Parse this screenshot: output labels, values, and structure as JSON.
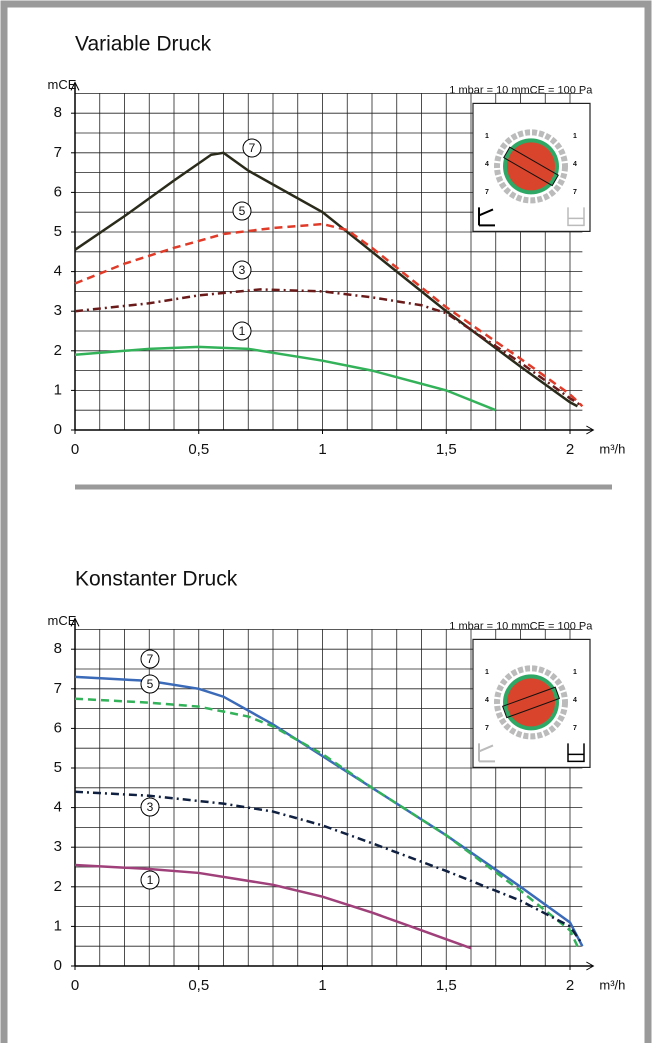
{
  "chart_data": [
    {
      "type": "line",
      "title": "Variable Druck",
      "y_label": "mCE",
      "x_label": "m³/h",
      "annotation": "1 mbar = 10 mmCE = 100 Pa",
      "xlim": [
        0,
        2.05
      ],
      "ylim": [
        0,
        8.5
      ],
      "xticks": [
        0,
        {
          "value": 0.5,
          "label": "0,5"
        },
        1,
        {
          "value": 1.5,
          "label": "1,5"
        },
        2
      ],
      "yticks": [
        0,
        1,
        2,
        3,
        4,
        5,
        6,
        7,
        8
      ],
      "grid": true,
      "xgrid_step": 0.1,
      "ygrid_step": 0.5,
      "dial_labels": [
        "1",
        "4",
        "7"
      ],
      "series": [
        {
          "name": "7",
          "color": "#2b2b1b",
          "dash": "solid",
          "x": [
            0,
            0.2,
            0.4,
            0.55,
            0.6,
            0.7,
            0.8,
            1.0,
            1.2,
            1.5,
            1.8,
            2.0,
            2.03
          ],
          "values": [
            4.55,
            5.4,
            6.3,
            6.95,
            7.0,
            6.55,
            6.2,
            5.5,
            4.5,
            3.0,
            1.6,
            0.7,
            0.6
          ]
        },
        {
          "name": "5",
          "color": "#e03a28",
          "dash": "dashed",
          "x": [
            0,
            0.2,
            0.4,
            0.6,
            0.8,
            1.0,
            1.1,
            1.2,
            1.5,
            1.8,
            2.0,
            2.05
          ],
          "values": [
            3.7,
            4.2,
            4.6,
            4.95,
            5.1,
            5.2,
            5.05,
            4.6,
            3.1,
            1.8,
            0.9,
            0.6
          ]
        },
        {
          "name": "3",
          "color": "#6b1a1a",
          "dash": "dashdot",
          "x": [
            0,
            0.3,
            0.5,
            0.75,
            1.0,
            1.2,
            1.4,
            1.5,
            1.8,
            2.0,
            2.05
          ],
          "values": [
            3.0,
            3.2,
            3.4,
            3.55,
            3.5,
            3.35,
            3.15,
            2.95,
            1.7,
            0.8,
            0.6
          ]
        },
        {
          "name": "1",
          "color": "#33b25a",
          "dash": "solid",
          "x": [
            0,
            0.3,
            0.5,
            0.7,
            1.0,
            1.2,
            1.5,
            1.7
          ],
          "values": [
            1.9,
            2.05,
            2.1,
            2.05,
            1.75,
            1.5,
            1.0,
            0.5
          ]
        }
      ]
    },
    {
      "type": "line",
      "title": "Konstanter Druck",
      "y_label": "mCE",
      "x_label": "m³/h",
      "annotation": "1 mbar = 10 mmCE = 100 Pa",
      "xlim": [
        0,
        2.05
      ],
      "ylim": [
        0,
        8.5
      ],
      "xticks": [
        0,
        {
          "value": 0.5,
          "label": "0,5"
        },
        1,
        {
          "value": 1.5,
          "label": "1,5"
        },
        2
      ],
      "yticks": [
        0,
        1,
        2,
        3,
        4,
        5,
        6,
        7,
        8
      ],
      "grid": true,
      "xgrid_step": 0.1,
      "ygrid_step": 0.5,
      "dial_labels": [
        "1",
        "4",
        "7"
      ],
      "series": [
        {
          "name": "7",
          "color": "#3a6ab8",
          "dash": "solid",
          "x": [
            0,
            0.3,
            0.5,
            0.6,
            0.8,
            1.0,
            1.2,
            1.5,
            1.8,
            2.0,
            2.05
          ],
          "values": [
            7.3,
            7.2,
            7.0,
            6.8,
            6.1,
            5.3,
            4.5,
            3.3,
            2.0,
            1.1,
            0.5
          ]
        },
        {
          "name": "5",
          "color": "#33b25a",
          "dash": "dashed",
          "x": [
            0,
            0.3,
            0.5,
            0.7,
            0.8,
            1.0,
            1.2,
            1.5,
            1.8,
            2.0,
            2.03
          ],
          "values": [
            6.75,
            6.65,
            6.55,
            6.3,
            6.05,
            5.35,
            4.5,
            3.3,
            1.9,
            0.9,
            0.5
          ]
        },
        {
          "name": "3",
          "color": "#102040",
          "dash": "dashdot",
          "x": [
            0,
            0.3,
            0.6,
            0.8,
            1.0,
            1.2,
            1.5,
            1.8,
            2.0,
            2.05
          ],
          "values": [
            4.4,
            4.3,
            4.1,
            3.9,
            3.55,
            3.1,
            2.4,
            1.65,
            1.0,
            0.55
          ]
        },
        {
          "name": "1",
          "color": "#a0407a",
          "dash": "solid",
          "x": [
            0,
            0.3,
            0.5,
            0.8,
            1.0,
            1.2,
            1.4,
            1.6
          ],
          "values": [
            2.55,
            2.45,
            2.35,
            2.05,
            1.75,
            1.35,
            0.9,
            0.45
          ]
        }
      ]
    }
  ]
}
